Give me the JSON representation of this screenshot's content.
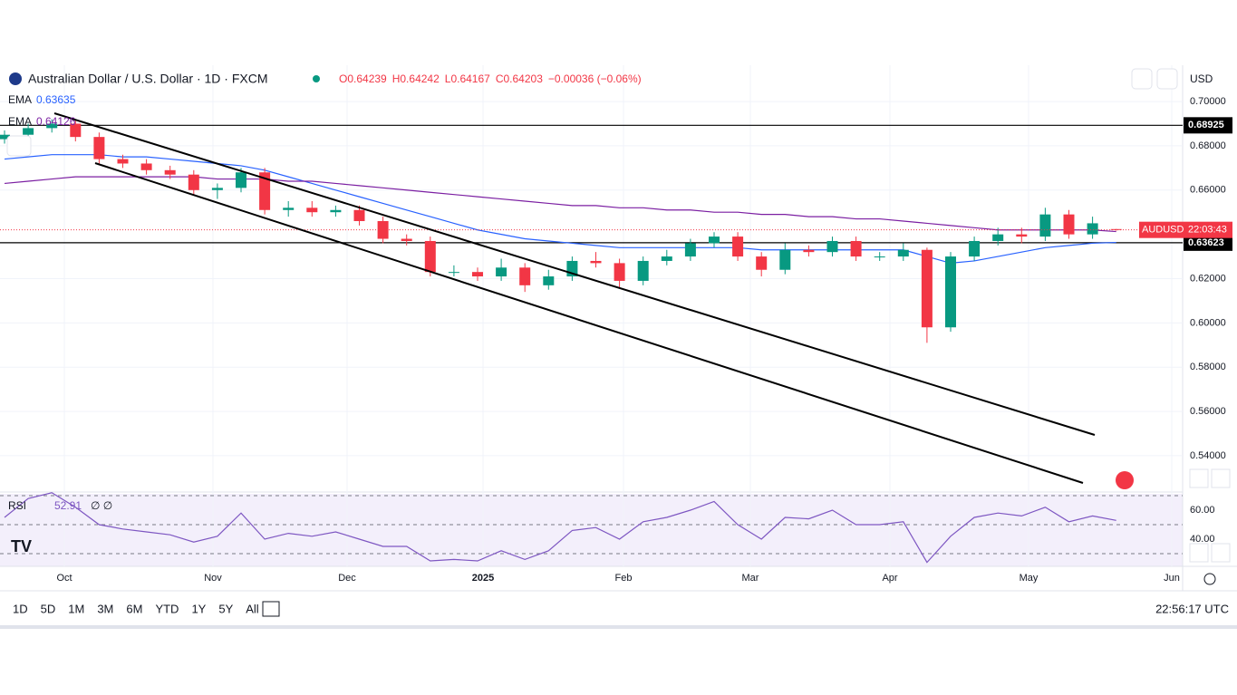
{
  "header": {
    "title": "Australian Dollar / U.S. Dollar · 1D · FXCM",
    "ohlc": [
      "O0.64239",
      "H0.64242",
      "L0.64167",
      "C0.64203",
      "−0.00036 (−0.06%)"
    ],
    "currency": "USD"
  },
  "chart_data": {
    "type": "candlestick",
    "color_up": "#089981",
    "color_down": "#f23645",
    "open": [
      0.683,
      0.685,
      0.688,
      0.69,
      0.684,
      0.674,
      0.672,
      0.669,
      0.667,
      0.66,
      0.661,
      0.668,
      0.651,
      0.652,
      0.65,
      0.651,
      0.646,
      0.638,
      0.637,
      0.623,
      0.623,
      0.621,
      0.625,
      0.617,
      0.621,
      0.628,
      0.627,
      0.619,
      0.628,
      0.63,
      0.636,
      0.639,
      0.63,
      0.624,
      0.633,
      0.632,
      0.637,
      0.63,
      0.63,
      0.633,
      0.598,
      0.63,
      0.637,
      0.64,
      0.639,
      0.649,
      0.64,
      0.64239
    ],
    "high": [
      0.687,
      0.69,
      0.692,
      0.692,
      0.686,
      0.676,
      0.674,
      0.671,
      0.669,
      0.663,
      0.67,
      0.67,
      0.655,
      0.655,
      0.653,
      0.653,
      0.648,
      0.64,
      0.639,
      0.626,
      0.625,
      0.629,
      0.627,
      0.624,
      0.63,
      0.632,
      0.629,
      0.63,
      0.633,
      0.638,
      0.641,
      0.641,
      0.632,
      0.636,
      0.635,
      0.639,
      0.639,
      0.632,
      0.636,
      0.634,
      0.632,
      0.639,
      0.643,
      0.643,
      0.652,
      0.651,
      0.648,
      0.64242
    ],
    "low": [
      0.681,
      0.683,
      0.686,
      0.682,
      0.672,
      0.67,
      0.667,
      0.665,
      0.658,
      0.656,
      0.659,
      0.649,
      0.648,
      0.648,
      0.648,
      0.644,
      0.636,
      0.635,
      0.621,
      0.621,
      0.619,
      0.619,
      0.614,
      0.615,
      0.619,
      0.625,
      0.616,
      0.617,
      0.626,
      0.628,
      0.634,
      0.628,
      0.621,
      0.622,
      0.63,
      0.63,
      0.628,
      0.628,
      0.628,
      0.591,
      0.596,
      0.628,
      0.635,
      0.636,
      0.637,
      0.638,
      0.638,
      0.64167
    ],
    "close": [
      0.685,
      0.688,
      0.69,
      0.684,
      0.674,
      0.672,
      0.669,
      0.667,
      0.66,
      0.661,
      0.668,
      0.651,
      0.652,
      0.65,
      0.651,
      0.646,
      0.638,
      0.637,
      0.623,
      0.623,
      0.621,
      0.625,
      0.617,
      0.621,
      0.628,
      0.627,
      0.619,
      0.628,
      0.63,
      0.636,
      0.639,
      0.63,
      0.624,
      0.633,
      0.632,
      0.637,
      0.63,
      0.63,
      0.633,
      0.598,
      0.63,
      0.637,
      0.64,
      0.639,
      0.649,
      0.64,
      0.645,
      0.64203
    ],
    "series": [
      {
        "name": "EMA",
        "color": "#2962ff",
        "values": [
          0.674,
          0.675,
          0.676,
          0.676,
          0.676,
          0.675,
          0.675,
          0.674,
          0.673,
          0.672,
          0.671,
          0.669,
          0.666,
          0.663,
          0.66,
          0.657,
          0.654,
          0.651,
          0.648,
          0.645,
          0.642,
          0.64,
          0.638,
          0.637,
          0.636,
          0.635,
          0.634,
          0.634,
          0.634,
          0.634,
          0.634,
          0.634,
          0.633,
          0.633,
          0.633,
          0.633,
          0.633,
          0.633,
          0.633,
          0.63,
          0.627,
          0.628,
          0.63,
          0.632,
          0.634,
          0.635,
          0.636,
          0.63635
        ]
      },
      {
        "name": "EMA",
        "color": "#7b1fa2",
        "values": [
          0.663,
          0.664,
          0.665,
          0.666,
          0.666,
          0.666,
          0.666,
          0.666,
          0.666,
          0.665,
          0.665,
          0.665,
          0.664,
          0.664,
          0.663,
          0.662,
          0.661,
          0.66,
          0.659,
          0.658,
          0.657,
          0.656,
          0.655,
          0.654,
          0.653,
          0.653,
          0.652,
          0.652,
          0.651,
          0.651,
          0.65,
          0.65,
          0.649,
          0.649,
          0.648,
          0.648,
          0.647,
          0.647,
          0.646,
          0.645,
          0.644,
          0.643,
          0.642,
          0.642,
          0.642,
          0.642,
          0.642,
          0.64126
        ]
      }
    ],
    "hlines": [
      0.68925,
      0.63623
    ],
    "last_label": [
      "AUDUSD",
      "22:03:43"
    ],
    "ylim": [
      0.5236,
      0.7164
    ],
    "yticks": [
      {
        "value": 0.7,
        "label": "0.70000"
      },
      {
        "value": 0.68,
        "label": "0.68000"
      },
      {
        "value": 0.66,
        "label": "0.66000"
      },
      {
        "value": 0.62,
        "label": "0.62000"
      },
      {
        "value": 0.6,
        "label": "0.60000"
      },
      {
        "value": 0.58,
        "label": "0.58000"
      },
      {
        "value": 0.56,
        "label": "0.56000"
      },
      {
        "value": 0.54,
        "label": "0.54000"
      }
    ],
    "xlabels": [
      "Oct",
      "Nov",
      "Dec",
      "2025",
      "Feb",
      "Mar",
      "Apr",
      "May",
      "Jun"
    ],
    "rsi": {
      "name": "RSI",
      "color": "#7e57c2",
      "values": [
        55,
        68,
        72,
        62,
        50,
        47,
        45,
        43,
        38,
        42,
        58,
        40,
        44,
        42,
        45,
        40,
        35,
        35,
        25,
        26,
        25,
        32,
        26,
        32,
        46,
        48,
        40,
        52,
        55,
        60,
        66,
        50,
        40,
        55,
        54,
        60,
        50,
        50,
        52,
        24,
        42,
        55,
        58,
        56,
        62,
        52,
        56,
        52.91
      ],
      "ylim": [
        21.25,
        71.25
      ],
      "yticks": [
        {
          "value": 60,
          "label": "60.00"
        },
        {
          "value": 40,
          "label": "40.00"
        }
      ],
      "levels": [
        70,
        50,
        30
      ],
      "extra": "∅ ∅"
    }
  },
  "toolbar": {
    "ranges": [
      "1D",
      "5D",
      "1M",
      "3M",
      "6M",
      "YTD",
      "1Y",
      "5Y",
      "All"
    ],
    "time": "22:56:17 UTC"
  }
}
